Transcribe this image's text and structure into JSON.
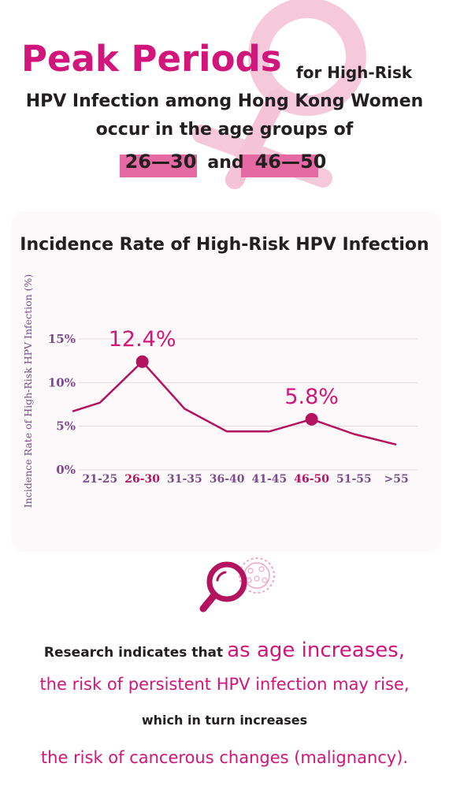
{
  "headline": {
    "big": "Peak Periods",
    "small": "for High-Risk",
    "line2": "HPV Infection among Hong Kong Women",
    "line3": "occur in the age groups of",
    "range1": "26—30",
    "connector": "and",
    "range2": "46—50"
  },
  "colors": {
    "accent": "#d2157b",
    "highlight": "#e56aa3",
    "symbol": "#f4c3d6",
    "line": "#b3125e",
    "axis_text": "#7b4b8e",
    "dark_text": "#231f20"
  },
  "icons": [
    "venus-symbol-icon",
    "magnifier-icon",
    "virus-icon"
  ],
  "chart_data": {
    "type": "line",
    "title": "Incidence Rate of High-Risk HPV Infection",
    "ylabel": "Incidence Rate of High-Risk HPV Infection (%)",
    "xlabel": "",
    "categories": [
      "21-25",
      "26-30",
      "31-35",
      "36-40",
      "41-45",
      "46-50",
      "51-55",
      ">55"
    ],
    "highlighted_categories": [
      "26-30",
      "46-50"
    ],
    "values": [
      7.7,
      12.4,
      7.0,
      4.4,
      4.4,
      5.8,
      4.1,
      2.9
    ],
    "lead_in_value": 6.7,
    "y_ticks": [
      "0%",
      "5%",
      "10%",
      "15%"
    ],
    "y_tick_values": [
      0,
      5,
      10,
      15
    ],
    "ylim": [
      0,
      15
    ],
    "grid": true,
    "annotations": [
      {
        "category": "26-30",
        "value": 12.4,
        "label": "12.4%"
      },
      {
        "category": "46-50",
        "value": 5.8,
        "label": "5.8%"
      }
    ]
  },
  "footer": {
    "line1_prefix": "Research indicates that",
    "line1_emphasis": "as age increases,",
    "line2": "the risk of persistent HPV infection may rise,",
    "line3": "which in turn increases",
    "line4": "the risk of cancerous changes (malignancy)."
  }
}
